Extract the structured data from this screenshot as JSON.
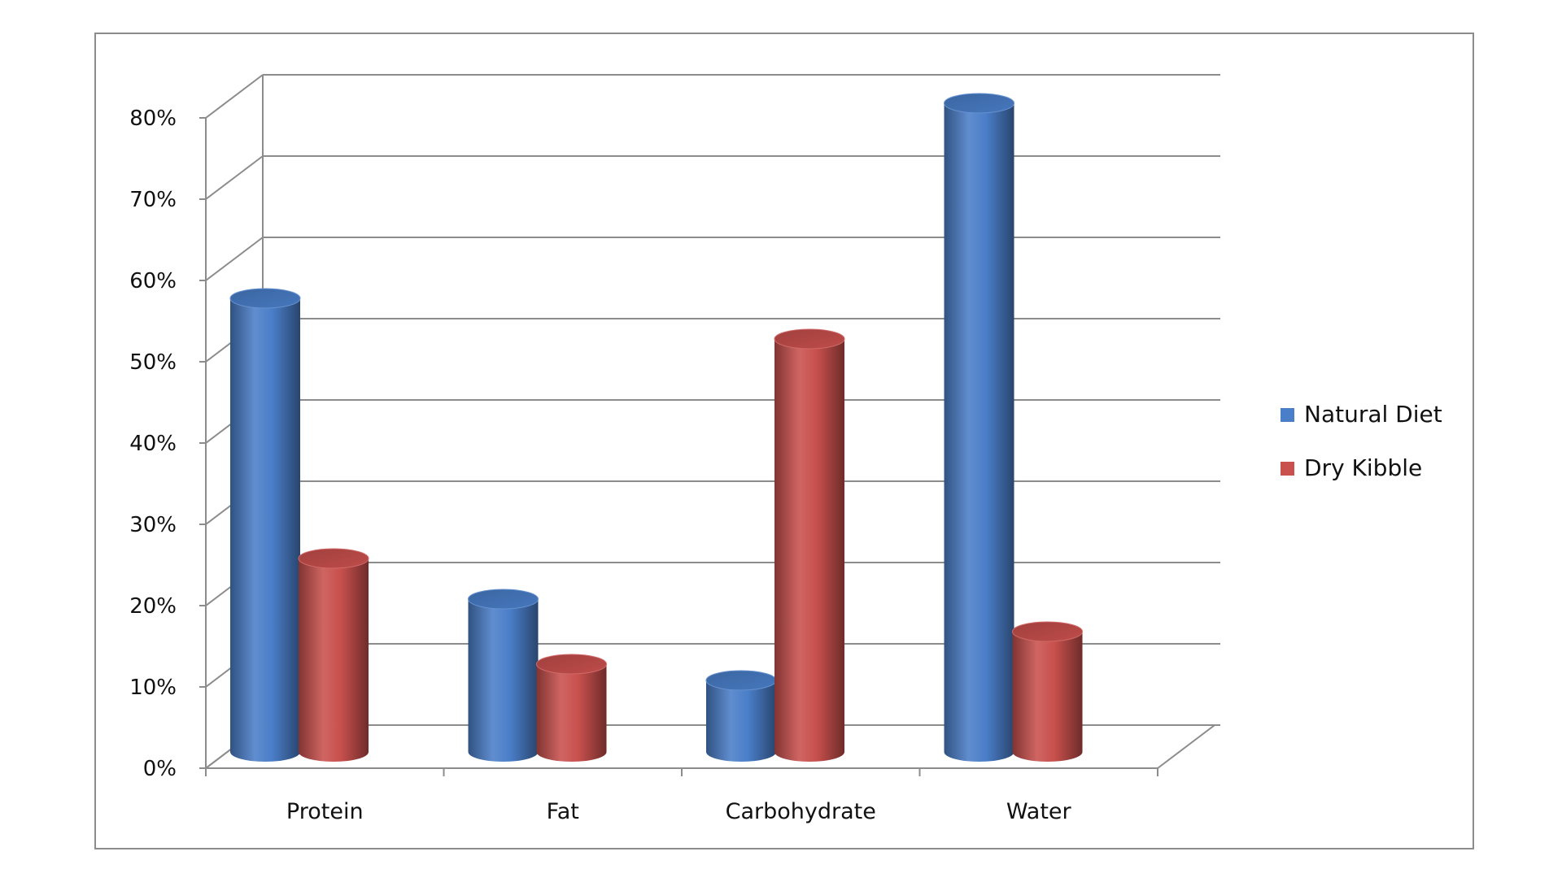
{
  "chart_data": {
    "type": "bar",
    "variant": "3d-cylinder",
    "title": "",
    "xlabel": "",
    "ylabel": "",
    "categories": [
      "Protein",
      "Fat",
      "Carbohydrate",
      "Water"
    ],
    "series": [
      {
        "name": "Natural Diet",
        "values": [
          55,
          18,
          8,
          79
        ],
        "color": "#4a7ec8"
      },
      {
        "name": "Dry Kibble",
        "values": [
          23,
          10,
          50,
          14
        ],
        "color": "#c8504d"
      }
    ],
    "ylim": [
      0,
      80
    ],
    "y_ticks": [
      "0%",
      "10%",
      "20%",
      "30%",
      "40%",
      "50%",
      "60%",
      "70%",
      "80%"
    ],
    "grid": true,
    "legend_position": "right"
  }
}
